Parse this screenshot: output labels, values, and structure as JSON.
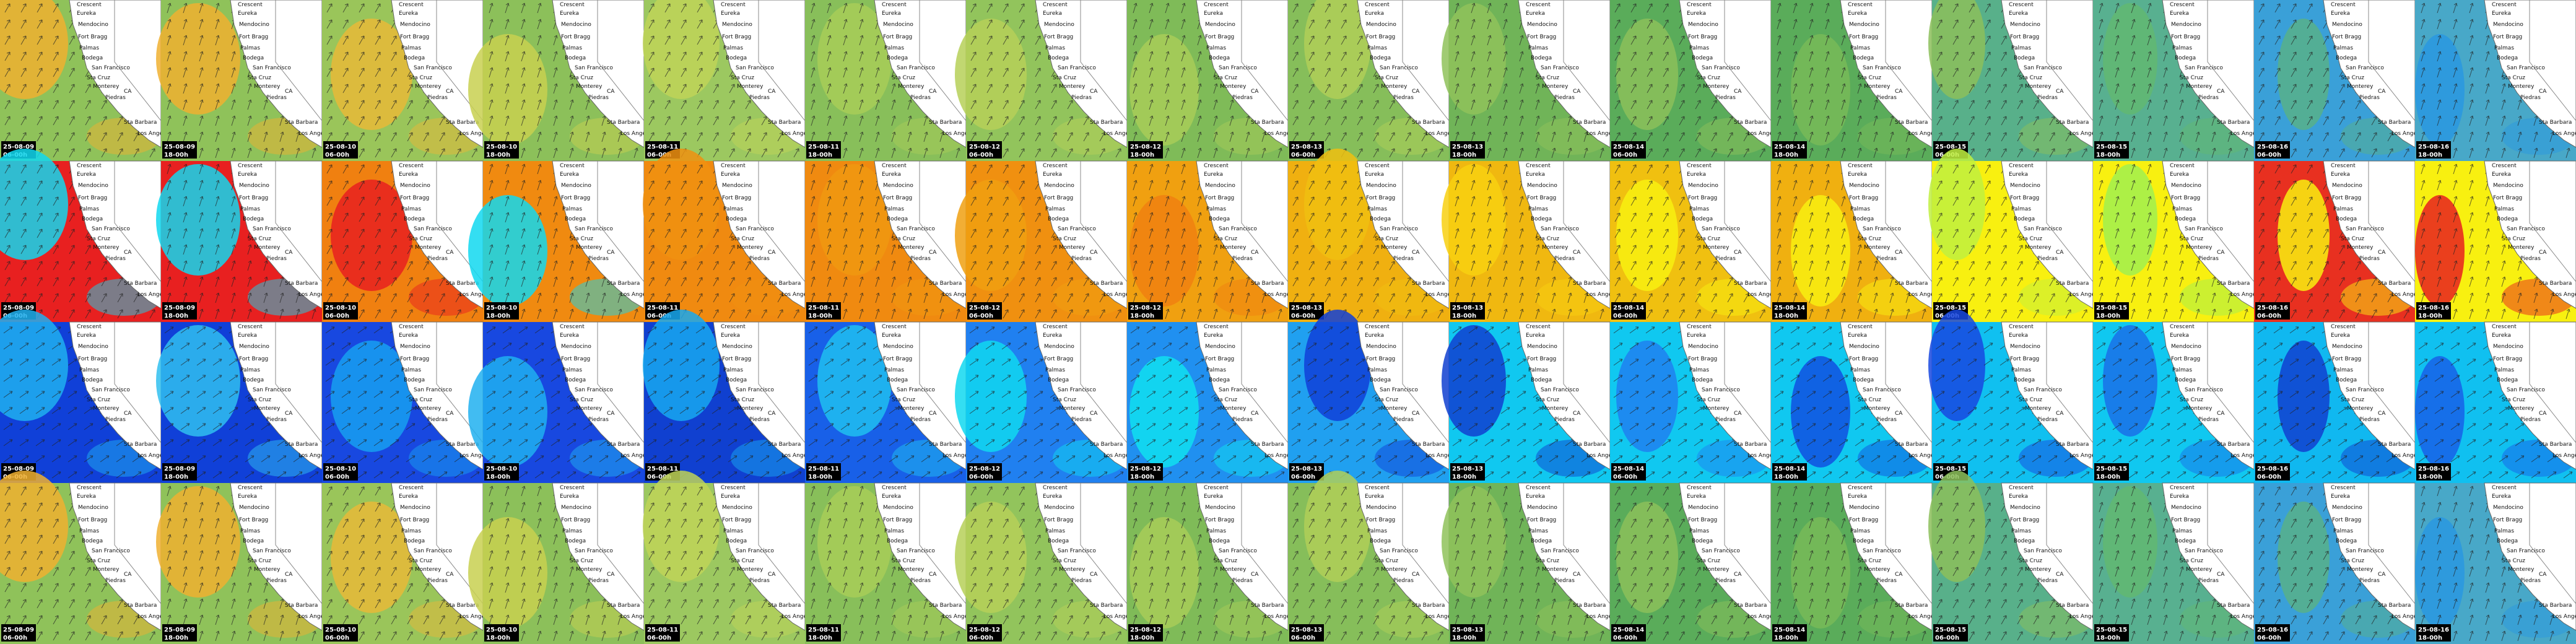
{
  "columns": [
    {
      "date": "25-08-09",
      "time": "06-00h"
    },
    {
      "date": "25-08-09",
      "time": "18-00h"
    },
    {
      "date": "25-08-10",
      "time": "06-00h"
    },
    {
      "date": "25-08-10",
      "time": "18-00h"
    },
    {
      "date": "25-08-11",
      "time": "06-00h"
    },
    {
      "date": "25-08-11",
      "time": "18-00h"
    },
    {
      "date": "25-08-12",
      "time": "06-00h"
    },
    {
      "date": "25-08-12",
      "time": "18-00h"
    },
    {
      "date": "25-08-13",
      "time": "06-00h"
    },
    {
      "date": "25-08-13",
      "time": "18-00h"
    },
    {
      "date": "25-08-14",
      "time": "06-00h"
    },
    {
      "date": "25-08-14",
      "time": "18-00h"
    },
    {
      "date": "25-08-15",
      "time": "06-00h"
    },
    {
      "date": "25-08-15",
      "time": "18-00h"
    },
    {
      "date": "25-08-16",
      "time": "06-00h"
    },
    {
      "date": "25-08-16",
      "time": "18-00h"
    }
  ],
  "places": [
    "Crescent",
    "Eureka",
    "Mendocino",
    "Fort Bragg",
    "Palmas",
    "Bodega",
    "San Francisco",
    "Sta Cruz",
    "Monterey",
    "CA",
    "Piedras",
    "Sta Barbara",
    "Los Angeles"
  ]
}
